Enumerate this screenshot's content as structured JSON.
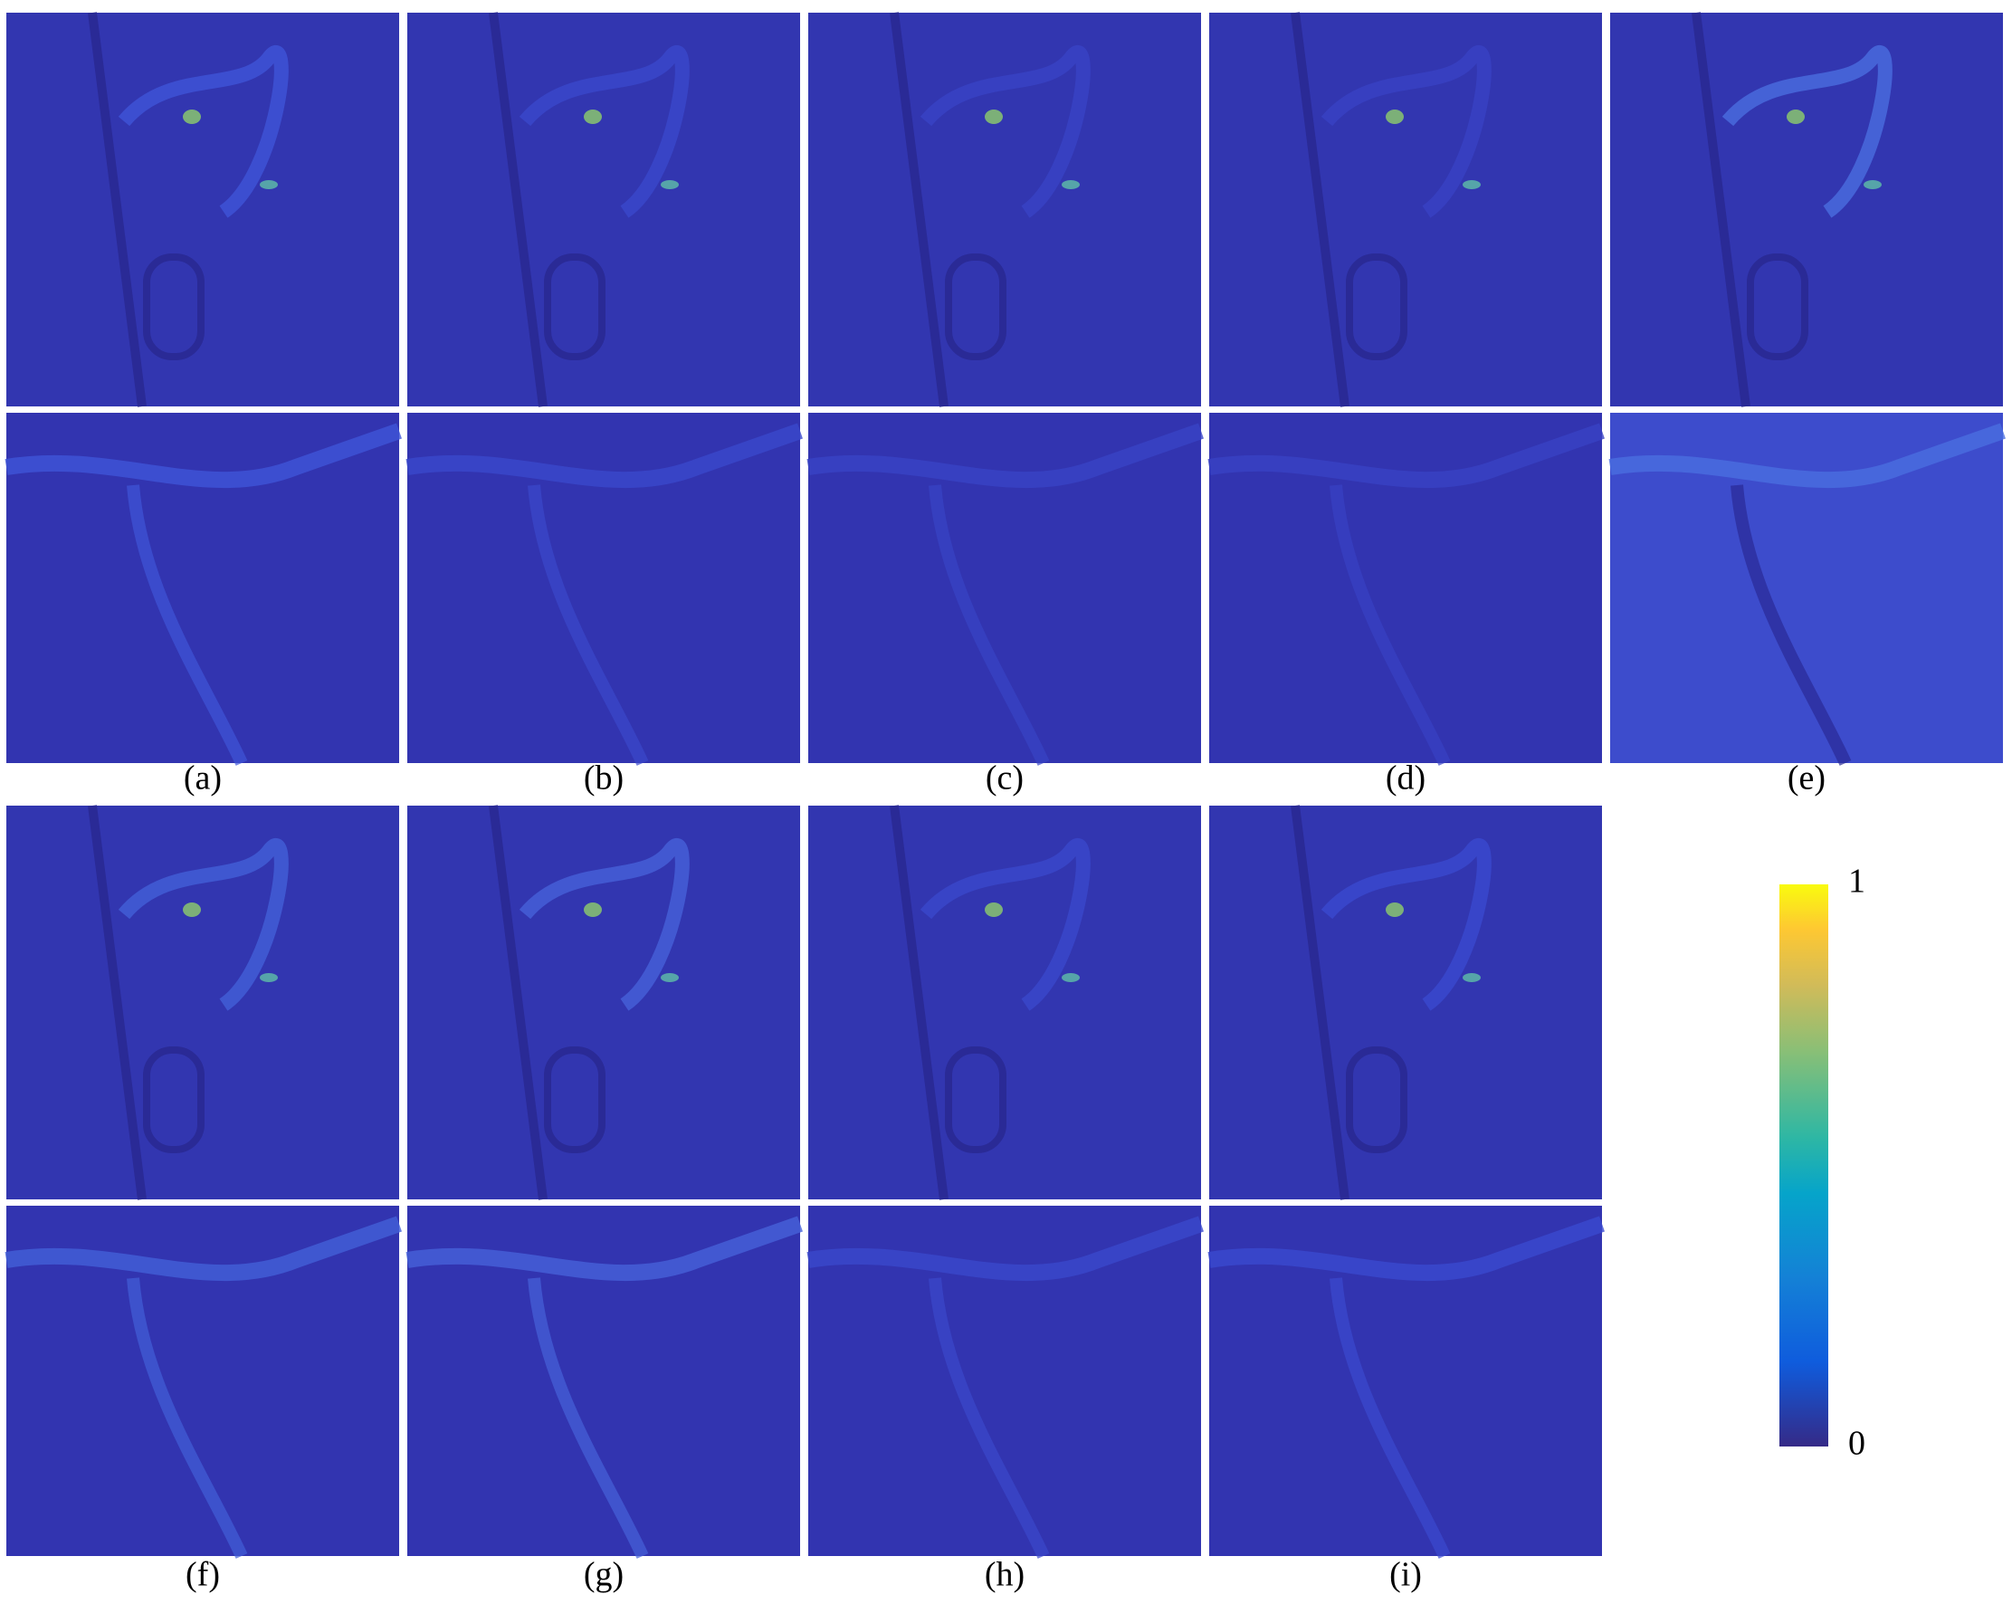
{
  "panels": [
    {
      "label": "(a)"
    },
    {
      "label": "(b)"
    },
    {
      "label": "(c)"
    },
    {
      "label": "(d)"
    },
    {
      "label": "(e)"
    },
    {
      "label": "(f)"
    },
    {
      "label": "(g)"
    },
    {
      "label": "(h)"
    },
    {
      "label": "(i)"
    }
  ],
  "colorbar": {
    "range": [
      0,
      1
    ],
    "ticks": [
      1,
      0
    ]
  }
}
